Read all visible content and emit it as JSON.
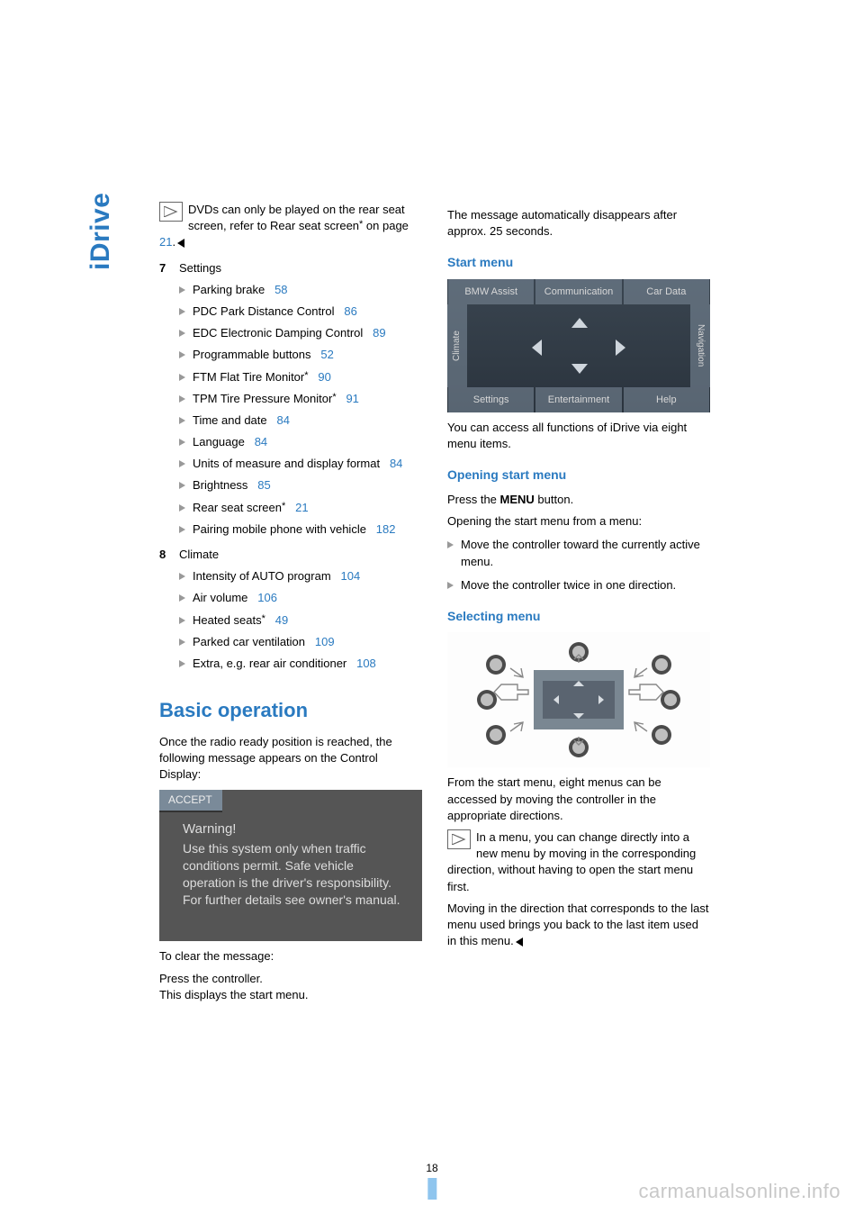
{
  "sidebar": {
    "label": "iDrive"
  },
  "left": {
    "note": {
      "pre": "DVDs can only be played on the rear seat screen, refer to Rear seat screen",
      "star": "*",
      "onpage": " on page ",
      "page": "21",
      "dot": "."
    },
    "item7": {
      "num": "7",
      "label": "Settings",
      "items": [
        {
          "text": "Parking brake",
          "page": "58"
        },
        {
          "text": "PDC Park Distance Control",
          "page": "86"
        },
        {
          "text": "EDC Electronic Damping Control",
          "page": "89"
        },
        {
          "text": "Programmable buttons",
          "page": "52"
        },
        {
          "text": "FTM Flat Tire Monitor",
          "star": "*",
          "page": "90"
        },
        {
          "text": "TPM Tire Pressure Monitor",
          "star": "*",
          "page": "91"
        },
        {
          "text": "Time and date",
          "page": "84"
        },
        {
          "text": "Language",
          "page": "84"
        },
        {
          "text": "Units of measure and display format",
          "page": "84"
        },
        {
          "text": "Brightness",
          "page": "85"
        },
        {
          "text": "Rear seat screen",
          "star": "*",
          "page": "21"
        },
        {
          "text": "Pairing mobile phone with vehicle",
          "page": "182"
        }
      ]
    },
    "item8": {
      "num": "8",
      "label": "Climate",
      "items": [
        {
          "text": "Intensity of AUTO program",
          "page": "104"
        },
        {
          "text": "Air volume",
          "page": "106"
        },
        {
          "text": "Heated seats",
          "star": "*",
          "page": "49"
        },
        {
          "text": "Parked car ventilation",
          "page": "109"
        },
        {
          "text": "Extra, e.g. rear air conditioner",
          "page": "108"
        }
      ]
    },
    "section": "Basic operation",
    "intro": "Once the radio ready position is reached, the following message appears on the Control Display:",
    "warning": {
      "accept": "ACCEPT",
      "title": "Warning!",
      "body": "Use this system only when traffic conditions permit. Safe vehicle operation is the driver's responsibility. For further details see owner's manual."
    },
    "clear1": "To clear the message:",
    "clear2": "Press the controller.",
    "clear3": "This displays the start menu."
  },
  "right": {
    "autohide": "The message automatically disappears after approx. 25 seconds.",
    "startmenu_h": "Start menu",
    "menu": {
      "top": [
        "BMW Assist",
        "Communication",
        "Car Data"
      ],
      "left": "Climate",
      "right": "Navigation",
      "bottom": [
        "Settings",
        "Entertainment",
        "Help"
      ]
    },
    "startmenu_p": "You can access all functions of iDrive via eight menu items.",
    "opening_h": "Opening start menu",
    "opening_p1a": "Press the ",
    "opening_p1b": "MENU",
    "opening_p1c": " button.",
    "opening_p2": "Opening the start menu from a menu:",
    "opening_items": [
      "Move the controller toward the currently active menu.",
      "Move the controller twice in one direction."
    ],
    "selecting_h": "Selecting menu",
    "selecting_p": "From the start menu, eight menus can be accessed by moving the controller in the appropriate directions.",
    "note2": "In a menu, you can change directly into a new menu by moving in the corresponding direction, without having to open the start menu first.",
    "note3": "Moving in the direction that corresponds to the last menu used brings you back to the last item used in this menu."
  },
  "pagenum": "18",
  "watermark": "carmanualsonline.info"
}
